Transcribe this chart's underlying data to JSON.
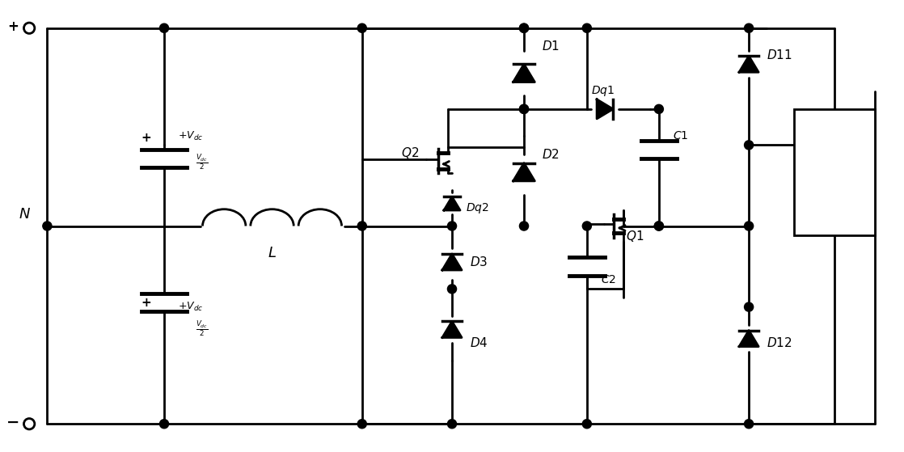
{
  "figsize": [
    11.18,
    5.59
  ],
  "dpi": 100,
  "line_color": "black",
  "lw": 2.0,
  "bg_color": "white",
  "title": ""
}
